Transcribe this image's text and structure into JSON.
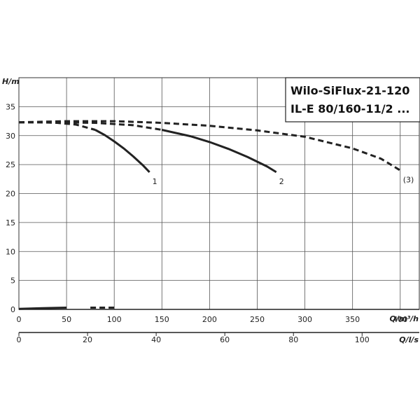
{
  "chart_data": {
    "type": "line",
    "title_lines": [
      "Wilo-SiFlux-21-120",
      "IL-E 80/160-11/2 ..."
    ],
    "ylabel": "H/m",
    "xlabel_primary": "Q/m³/h",
    "xlabel_secondary": "Q/l/s",
    "xlim": [
      0,
      420
    ],
    "ylim": [
      0,
      40
    ],
    "xticks_primary": [
      0,
      50,
      100,
      150,
      200,
      250,
      300,
      350,
      400
    ],
    "xticks_secondary": [
      0,
      20,
      40,
      60,
      80,
      100
    ],
    "yticks": [
      0,
      5,
      10,
      15,
      20,
      25,
      30,
      35
    ],
    "grid": true,
    "series": [
      {
        "name": "1",
        "x": [
          0,
          20,
          40,
          60,
          80,
          90,
          100,
          110,
          120,
          130,
          137
        ],
        "y": [
          32.3,
          32.3,
          32.2,
          31.9,
          31.0,
          30.1,
          29.0,
          27.8,
          26.4,
          24.9,
          23.7
        ],
        "dash_until_x": 80
      },
      {
        "name": "2",
        "x": [
          0,
          40,
          80,
          120,
          150,
          180,
          200,
          220,
          240,
          260,
          270
        ],
        "y": [
          32.3,
          32.3,
          32.2,
          31.8,
          31.0,
          29.9,
          28.9,
          27.7,
          26.3,
          24.7,
          23.7
        ],
        "dash_until_x": 150
      },
      {
        "name": "(3)",
        "x": [
          0,
          50,
          100,
          150,
          200,
          250,
          300,
          350,
          380,
          400
        ],
        "y": [
          32.3,
          32.5,
          32.5,
          32.2,
          31.7,
          30.9,
          29.8,
          27.8,
          26.0,
          24.0
        ],
        "dash_until_x": 400
      }
    ],
    "power_series": {
      "x": [
        0,
        25,
        50,
        75,
        100
      ],
      "y": [
        0.1,
        0.2,
        0.3,
        0.3,
        0.3
      ],
      "dash_from_x": 70
    }
  }
}
